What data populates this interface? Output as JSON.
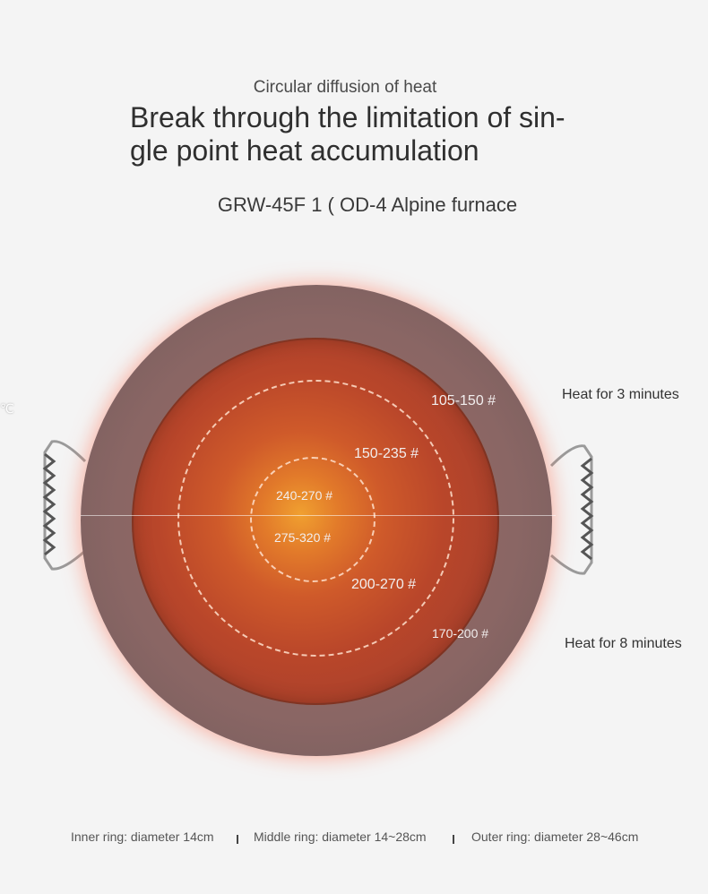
{
  "header": {
    "subtitle": "Circular diffusion of heat",
    "headline_line1": "Break through the limitation of sin-",
    "headline_line2": "gle point heat accumulation",
    "model": "GRW-45F 1 ( OD-4 Alpine furnace"
  },
  "zones": {
    "z105": "105-150 #",
    "z150": "150-235 #",
    "z240": "240-270 #",
    "z275": "275-320 #",
    "z200": "200-270 #",
    "z170": "170-200 #"
  },
  "side_labels": {
    "heat3": "Heat for 3 minutes",
    "heat8": "Heat for 8 minutes",
    "left_stub": "℃"
  },
  "footer": {
    "inner": "Inner ring: diameter 14cm",
    "middle": "Middle ring: diameter 14~28cm",
    "outer": "Outer ring: diameter 28~46cm"
  }
}
